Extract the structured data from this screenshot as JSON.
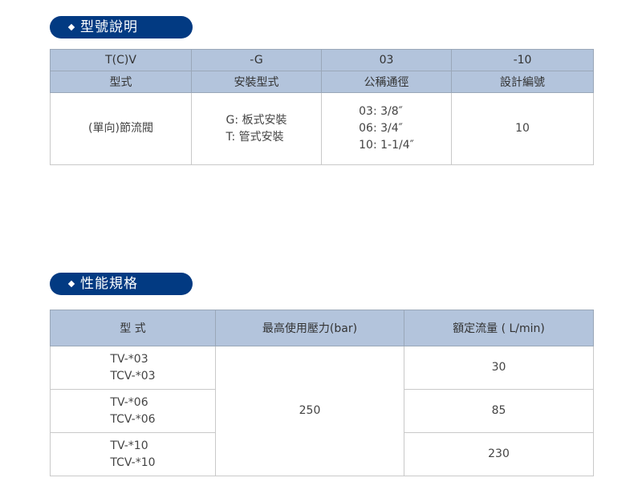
{
  "section1": {
    "title": "型號說明",
    "codes": [
      "T(C)V",
      "-G",
      "03",
      "-10"
    ],
    "labels": [
      "型式",
      "安裝型式",
      "公稱通徑",
      "設計編號"
    ],
    "values": {
      "type": "(單向)節流閥",
      "mounting": [
        "G: 板式安裝",
        "T: 管式安裝"
      ],
      "size": [
        "03: 3/8″",
        "06: 3/4″",
        "10: 1-1/4″"
      ],
      "design": "10"
    }
  },
  "section2": {
    "title": "性能規格",
    "headers": [
      "型 式",
      "最高使用壓力(bar)",
      "額定流量 ( L/min)"
    ],
    "pressure": "250",
    "rows": [
      {
        "models": [
          "TV-*03",
          "TCV-*03"
        ],
        "flow": "30"
      },
      {
        "models": [
          "TV-*06",
          "TCV-*06"
        ],
        "flow": "85"
      },
      {
        "models": [
          "TV-*10",
          "TCV-*10"
        ],
        "flow": "230"
      }
    ]
  },
  "colors": {
    "pill": "#023a82",
    "header": "#b3c4dc"
  }
}
